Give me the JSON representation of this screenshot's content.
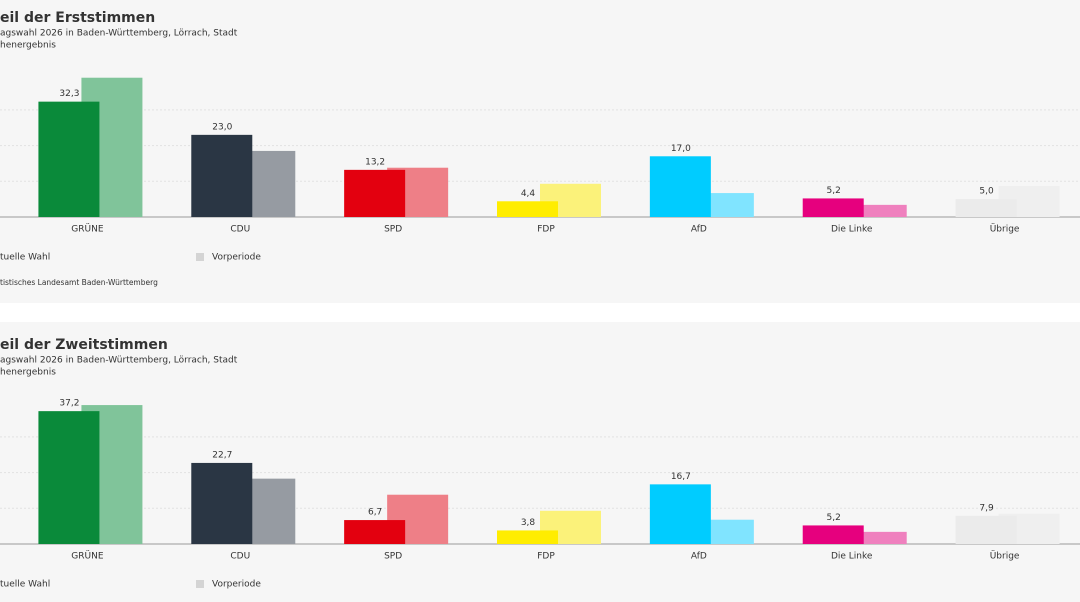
{
  "chart_data": [
    {
      "type": "bar",
      "title": "eil der Erststimmen",
      "subtitle": "agswahl 2026 in Baden-Württemberg, Lörrach, Stadt",
      "note": "henergebnis",
      "categories": [
        "GRÜNE",
        "CDU",
        "SPD",
        "FDP",
        "AfD",
        "Die Linke",
        "Übrige"
      ],
      "series": [
        {
          "name": "tuelle Wahl",
          "colors": [
            "#0a8a3a",
            "#2a3644",
            "#e3000f",
            "#ffed00",
            "#00ccff",
            "#e6007e",
            "#ebebeb"
          ],
          "values": [
            32.3,
            23.0,
            13.2,
            4.4,
            17.0,
            5.2,
            5.0
          ],
          "value_labels": [
            "32,3",
            "23,0",
            "13,2",
            "4,4",
            "17,0",
            "5,2",
            "5,0"
          ]
        },
        {
          "name": "Vorperiode",
          "legend_color": "#d4d4d4",
          "colors": [
            "#80c49a",
            "#969ba2",
            "#ee7f87",
            "#fbf27a",
            "#80e4ff",
            "#ef80be",
            "#efefef"
          ],
          "values": [
            39.0,
            18.5,
            13.8,
            9.3,
            6.7,
            3.4,
            8.7
          ]
        }
      ],
      "ylim": [
        0,
        42
      ],
      "yticks": [
        0,
        10,
        20,
        30
      ],
      "grid": true,
      "source": "tistisches Landesamt Baden-Württemberg"
    },
    {
      "type": "bar",
      "title": "eil der Zweitstimmen",
      "subtitle": "agswahl 2026 in Baden-Württemberg, Lörrach, Stadt",
      "note": "henergebnis",
      "categories": [
        "GRÜNE",
        "CDU",
        "SPD",
        "FDP",
        "AfD",
        "Die Linke",
        "Übrige"
      ],
      "series": [
        {
          "name": "tuelle Wahl",
          "colors": [
            "#0a8a3a",
            "#2a3644",
            "#e3000f",
            "#ffed00",
            "#00ccff",
            "#e6007e",
            "#ebebeb"
          ],
          "values": [
            37.2,
            22.7,
            6.7,
            3.8,
            16.7,
            5.2,
            7.9
          ],
          "value_labels": [
            "37,2",
            "22,7",
            "6,7",
            "3,8",
            "16,7",
            "5,2",
            "7,9"
          ]
        },
        {
          "name": "Vorperiode",
          "legend_color": "#d4d4d4",
          "colors": [
            "#80c49a",
            "#969ba2",
            "#ee7f87",
            "#fbf27a",
            "#80e4ff",
            "#ef80be",
            "#efefef"
          ],
          "values": [
            38.9,
            18.3,
            13.8,
            9.3,
            6.8,
            3.4,
            8.5
          ]
        }
      ],
      "ylim": [
        0,
        42
      ],
      "yticks": [
        0,
        10,
        20,
        30
      ],
      "grid": true
    }
  ]
}
